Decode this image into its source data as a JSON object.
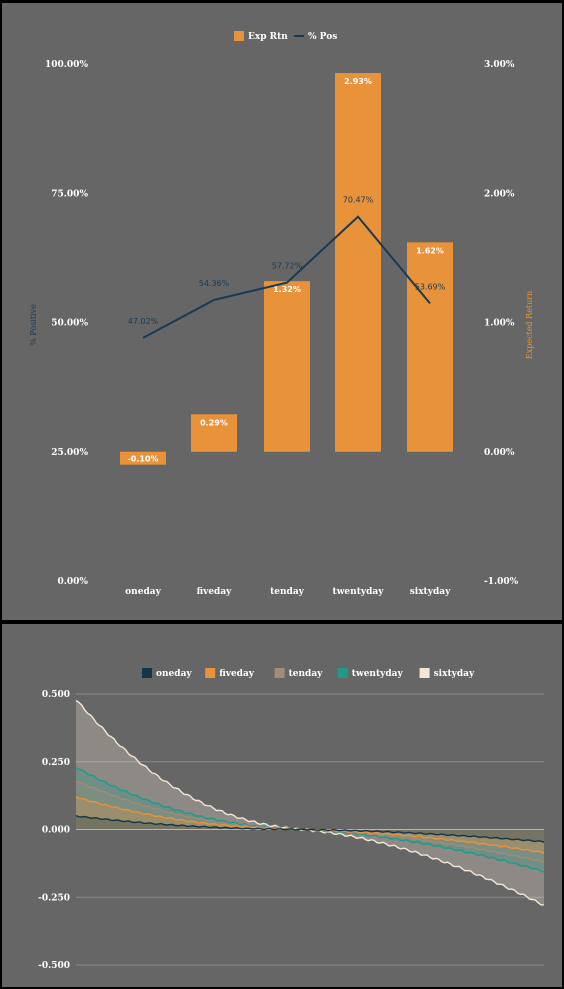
{
  "chart_data": [
    {
      "type": "bar",
      "legend": [
        "Exp Rtn",
        "% Pos"
      ],
      "legend_position": "top-center",
      "categories": [
        "oneday",
        "fiveday",
        "tenday",
        "twentyday",
        "sixtyday"
      ],
      "y_left_label": "% Positive",
      "y_right_label": "Expected Return",
      "y_left_ticks": [
        "100.00%",
        "75.00%",
        "50.00%",
        "25.00%",
        "0.00%"
      ],
      "y_right_ticks": [
        "3.00%",
        "2.00%",
        "1.00%",
        "0.00%",
        "-1.00%"
      ],
      "y_left_range": [
        0,
        100
      ],
      "y_right_range": [
        -1,
        3
      ],
      "exp_rtn": [
        -0.1,
        0.29,
        1.32,
        2.93,
        1.62
      ],
      "exp_rtn_labels": [
        "-0.10%",
        "0.29%",
        "1.32%",
        "2.93%",
        "1.62%"
      ],
      "pct_pos": [
        47.02,
        54.36,
        57.72,
        70.47,
        53.69
      ],
      "pct_pos_labels": [
        "47.02%",
        "54.36%",
        "57.72%",
        "70.47%",
        "53.69%"
      ],
      "colors": {
        "bar": "#e8923a",
        "line": "#1a3a52",
        "background": "#666666"
      }
    },
    {
      "type": "area",
      "legend_position": "top-center",
      "y_ticks": [
        "0.500",
        "0.250",
        "0.000",
        "-0.250",
        "-0.500"
      ],
      "y_range": [
        -0.5,
        0.5
      ],
      "grid": true,
      "series": [
        {
          "name": "oneday",
          "color": "#14344a",
          "start": 0.05,
          "end": -0.045,
          "shape": 0.5
        },
        {
          "name": "fiveday",
          "color": "#e8923a",
          "start": 0.12,
          "end": -0.085,
          "shape": 0.6
        },
        {
          "name": "tenday",
          "color": "#a38b76",
          "start": 0.18,
          "end": -0.12,
          "shape": 0.7
        },
        {
          "name": "twentyday",
          "color": "#1f9a8a",
          "start": 0.23,
          "end": -0.155,
          "shape": 0.8
        },
        {
          "name": "sixtyday",
          "color": "#f4e6d6",
          "start": 0.48,
          "end": -0.28,
          "shape": 1.0
        }
      ]
    }
  ]
}
